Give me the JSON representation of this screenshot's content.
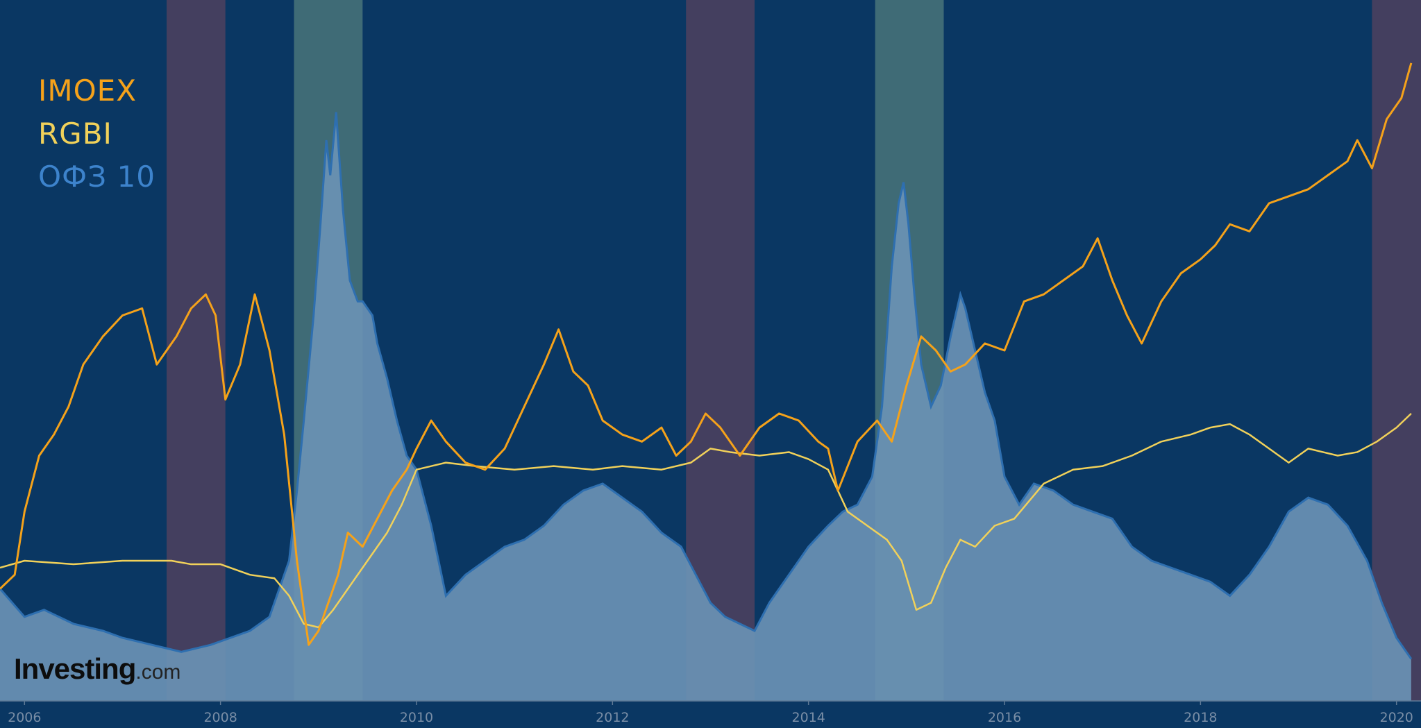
{
  "colors": {
    "background": "#0a3763",
    "imoex": "#f5a21a",
    "rgbi": "#f1d15a",
    "ofz10_line": "#2e6fb0",
    "ofz10_fill": "#6c93b6",
    "band_purple": "#443f5f",
    "band_green": "#3f6b76",
    "watermark": "#0d0d0d"
  },
  "legend": [
    {
      "key": "imoex",
      "label": "IMOEX",
      "color": "#f5a21a"
    },
    {
      "key": "rgbi",
      "label": "RGBI",
      "color": "#f1d15a"
    },
    {
      "key": "ofz10",
      "label": "ОФЗ 10",
      "color": "#3d83cc"
    }
  ],
  "watermark": {
    "brand": "Investing",
    "suffix": ".com"
  },
  "chart_data": {
    "type": "line",
    "title": "",
    "xlabel": "",
    "ylabel": "",
    "xlim": [
      2005.75,
      2020.25
    ],
    "x_ticks": [
      "2006",
      "2008",
      "2010",
      "2012",
      "2014",
      "2016",
      "2018",
      "2020"
    ],
    "grid": false,
    "legend_position": "top-left",
    "y_scale_note": "no y axis printed; values in relative units 0-100 (0 = chart bottom)",
    "ylim": [
      0,
      100
    ],
    "shaded_bands": [
      {
        "start": 2007.45,
        "end": 2008.05,
        "style": "purple"
      },
      {
        "start": 2008.75,
        "end": 2009.45,
        "style": "green"
      },
      {
        "start": 2012.75,
        "end": 2013.45,
        "style": "purple"
      },
      {
        "start": 2014.68,
        "end": 2015.38,
        "style": "green"
      },
      {
        "start": 2019.75,
        "end": 2020.25,
        "style": "purple"
      }
    ],
    "series": [
      {
        "name": "IMOEX",
        "x": [
          2005.75,
          2005.9,
          2006.0,
          2006.15,
          2006.3,
          2006.45,
          2006.6,
          2006.8,
          2007.0,
          2007.2,
          2007.35,
          2007.45,
          2007.55,
          2007.7,
          2007.85,
          2007.95,
          2008.05,
          2008.2,
          2008.35,
          2008.5,
          2008.65,
          2008.78,
          2008.9,
          2009.0,
          2009.1,
          2009.2,
          2009.3,
          2009.45,
          2009.6,
          2009.75,
          2009.9,
          2010.0,
          2010.15,
          2010.3,
          2010.5,
          2010.7,
          2010.9,
          2011.1,
          2011.3,
          2011.45,
          2011.6,
          2011.75,
          2011.9,
          2012.1,
          2012.3,
          2012.5,
          2012.65,
          2012.8,
          2012.95,
          2013.1,
          2013.3,
          2013.5,
          2013.7,
          2013.9,
          2014.1,
          2014.2,
          2014.3,
          2014.5,
          2014.7,
          2014.85,
          2015.0,
          2015.15,
          2015.3,
          2015.45,
          2015.6,
          2015.8,
          2016.0,
          2016.2,
          2016.4,
          2016.6,
          2016.8,
          2016.95,
          2017.1,
          2017.25,
          2017.4,
          2017.6,
          2017.8,
          2018.0,
          2018.15,
          2018.3,
          2018.5,
          2018.7,
          2018.9,
          2019.1,
          2019.3,
          2019.5,
          2019.6,
          2019.75,
          2019.9,
          2020.05,
          2020.15
        ],
        "values": [
          16,
          18,
          27,
          35,
          38,
          42,
          48,
          52,
          55,
          56,
          48,
          50,
          52,
          56,
          58,
          55,
          43,
          48,
          58,
          50,
          38,
          20,
          8,
          10,
          14,
          18,
          24,
          22,
          26,
          30,
          33,
          36,
          40,
          37,
          34,
          33,
          36,
          42,
          48,
          53,
          47,
          45,
          40,
          38,
          37,
          39,
          35,
          37,
          41,
          39,
          35,
          39,
          41,
          40,
          37,
          36,
          30,
          37,
          40,
          37,
          45,
          52,
          50,
          47,
          48,
          51,
          50,
          57,
          58,
          60,
          62,
          66,
          60,
          55,
          51,
          57,
          61,
          63,
          65,
          68,
          67,
          71,
          72,
          73,
          75,
          77,
          80,
          76,
          83,
          86,
          91
        ]
      },
      {
        "name": "RGBI",
        "x": [
          2005.75,
          2006.0,
          2006.5,
          2007.0,
          2007.5,
          2007.7,
          2008.0,
          2008.3,
          2008.55,
          2008.7,
          2008.85,
          2009.0,
          2009.15,
          2009.3,
          2009.5,
          2009.7,
          2009.85,
          2010.0,
          2010.3,
          2010.6,
          2011.0,
          2011.4,
          2011.8,
          2012.1,
          2012.5,
          2012.8,
          2013.0,
          2013.2,
          2013.5,
          2013.8,
          2014.0,
          2014.2,
          2014.4,
          2014.6,
          2014.8,
          2014.95,
          2015.1,
          2015.25,
          2015.4,
          2015.55,
          2015.7,
          2015.9,
          2016.1,
          2016.4,
          2016.7,
          2017.0,
          2017.3,
          2017.6,
          2017.9,
          2018.1,
          2018.3,
          2018.5,
          2018.7,
          2018.9,
          2019.1,
          2019.4,
          2019.6,
          2019.8,
          2020.0,
          2020.15
        ],
        "values": [
          19,
          20,
          19.5,
          20,
          20,
          19.5,
          19.5,
          18,
          17.5,
          15,
          11,
          10.5,
          13,
          16,
          20,
          24,
          28,
          33,
          34,
          33.5,
          33,
          33.5,
          33,
          33.5,
          33,
          34,
          36,
          35.5,
          35,
          35.5,
          34.5,
          33,
          27,
          25,
          23,
          20,
          13,
          14,
          19,
          23,
          22,
          25,
          26,
          31,
          33,
          33.5,
          35,
          37,
          38,
          39,
          39.5,
          38,
          36,
          34,
          36,
          35,
          35.5,
          37,
          39,
          41
        ]
      },
      {
        "name": "ОФЗ 10",
        "x": [
          2005.75,
          2006.0,
          2006.2,
          2006.5,
          2006.8,
          2007.0,
          2007.3,
          2007.6,
          2007.9,
          2008.1,
          2008.3,
          2008.5,
          2008.7,
          2008.78,
          2008.85,
          2008.95,
          2009.02,
          2009.08,
          2009.12,
          2009.18,
          2009.25,
          2009.32,
          2009.4,
          2009.45,
          2009.55,
          2009.6,
          2009.7,
          2009.8,
          2009.9,
          2010.0,
          2010.15,
          2010.3,
          2010.5,
          2010.7,
          2010.9,
          2011.1,
          2011.3,
          2011.5,
          2011.7,
          2011.9,
          2012.1,
          2012.3,
          2012.5,
          2012.7,
          2012.85,
          2013.0,
          2013.15,
          2013.3,
          2013.45,
          2013.6,
          2013.8,
          2014.0,
          2014.2,
          2014.35,
          2014.5,
          2014.65,
          2014.75,
          2014.85,
          2014.92,
          2014.97,
          2015.02,
          2015.08,
          2015.15,
          2015.25,
          2015.35,
          2015.45,
          2015.55,
          2015.6,
          2015.7,
          2015.8,
          2015.9,
          2016.0,
          2016.15,
          2016.3,
          2016.5,
          2016.7,
          2016.9,
          2017.1,
          2017.3,
          2017.5,
          2017.7,
          2017.9,
          2018.1,
          2018.3,
          2018.5,
          2018.7,
          2018.9,
          2019.1,
          2019.3,
          2019.5,
          2019.7,
          2019.85,
          2020.0,
          2020.15
        ],
        "values": [
          16,
          12,
          13,
          11,
          10,
          9,
          8,
          7,
          8,
          9,
          10,
          12,
          20,
          30,
          40,
          55,
          68,
          80,
          75,
          84,
          70,
          60,
          57,
          57,
          55,
          51,
          46,
          40,
          35,
          33,
          25,
          15,
          18,
          20,
          22,
          23,
          25,
          28,
          30,
          31,
          29,
          27,
          24,
          22,
          18,
          14,
          12,
          11,
          10,
          14,
          18,
          22,
          25,
          27,
          28,
          32,
          42,
          62,
          71,
          74,
          68,
          58,
          48,
          42,
          45,
          52,
          58,
          56,
          50,
          44,
          40,
          32,
          28,
          31,
          30,
          28,
          27,
          26,
          22,
          20,
          19,
          18,
          17,
          15,
          18,
          22,
          27,
          29,
          28,
          25,
          20,
          14,
          9,
          6
        ]
      }
    ]
  }
}
